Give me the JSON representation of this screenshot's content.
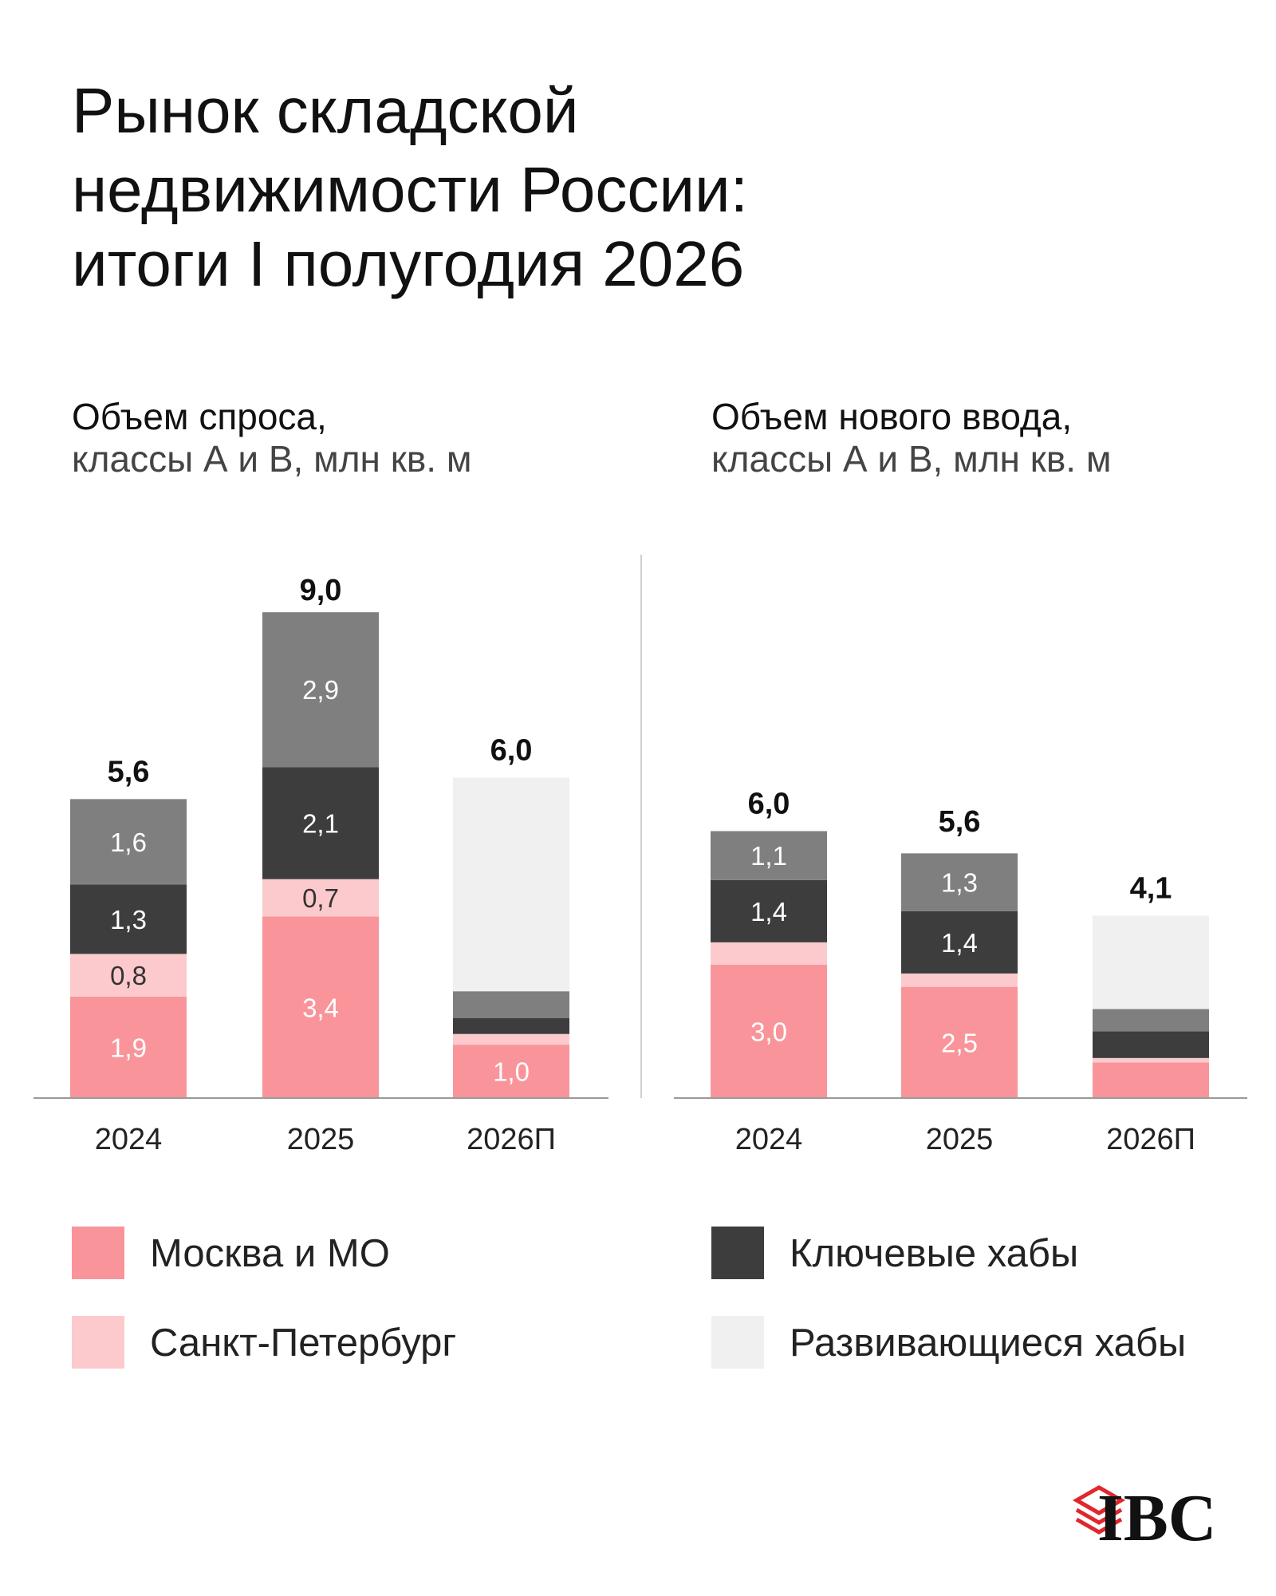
{
  "title": [
    "Рынок складской",
    "недвижимости России:",
    "итоги I полугодия 2026"
  ],
  "logo": "IBC",
  "chart_data": [
    {
      "type": "stacked-bar",
      "title": "Объем спроса,",
      "subtitle": "классы А и В, млн кв. м",
      "categories": [
        "2024",
        "2025",
        "2026П"
      ],
      "ylim": [
        0,
        10
      ],
      "totals": [
        5.6,
        9.0,
        6.0
      ],
      "total_labels": [
        "5,6",
        "9,0",
        "6,0"
      ],
      "series": [
        {
          "name": "Москва и МО",
          "color": "#f9959a",
          "values": [
            1.9,
            3.4,
            1.0
          ],
          "value_labels": [
            "1,9",
            "3,4",
            "1,0"
          ]
        },
        {
          "name": "Санкт-Петербург",
          "color": "#fccacd",
          "values": [
            0.8,
            0.7,
            0.2
          ],
          "value_labels": [
            "0,8",
            "0,7",
            null
          ]
        },
        {
          "name": "Ключевые хабы",
          "color": "#3d3d3d",
          "values": [
            1.3,
            2.1,
            0.3
          ],
          "value_labels": [
            "1,3",
            "2,1",
            null
          ]
        },
        {
          "color": "#7f7f7f",
          "values": [
            1.6,
            2.9,
            0.5
          ],
          "value_labels": [
            "1,6",
            "2,9",
            null
          ]
        },
        {
          "name": "Развивающиеся хабы",
          "color": "#f0f0f0",
          "values": [
            null,
            null,
            4.0
          ],
          "value_labels": [
            null,
            null,
            null
          ]
        }
      ]
    },
    {
      "type": "stacked-bar",
      "title": "Объем нового ввода,",
      "subtitle": "классы А и В, млн кв. м",
      "categories": [
        "2024",
        "2025",
        "2026П"
      ],
      "ylim": [
        0,
        12
      ],
      "totals": [
        6.0,
        5.6,
        4.1
      ],
      "total_labels": [
        "6,0",
        "5,6",
        "4,1"
      ],
      "series": [
        {
          "color": "#f9959a",
          "values": [
            3.0,
            2.5,
            0.8
          ],
          "value_labels": [
            "3,0",
            "2,5",
            null
          ]
        },
        {
          "color": "#fccacd",
          "values": [
            0.5,
            0.3,
            0.1
          ],
          "value_labels": [
            null,
            null,
            null
          ]
        },
        {
          "color": "#3d3d3d",
          "values": [
            1.4,
            1.4,
            0.6
          ],
          "value_labels": [
            "1,4",
            "1,4",
            null
          ]
        },
        {
          "color": "#7f7f7f",
          "values": [
            1.1,
            1.3,
            0.5
          ],
          "value_labels": [
            "1,1",
            "1,3",
            null
          ]
        },
        {
          "color": "#f0f0f0",
          "values": [
            null,
            null,
            2.1
          ],
          "value_labels": [
            null,
            null,
            null
          ]
        }
      ]
    }
  ]
}
